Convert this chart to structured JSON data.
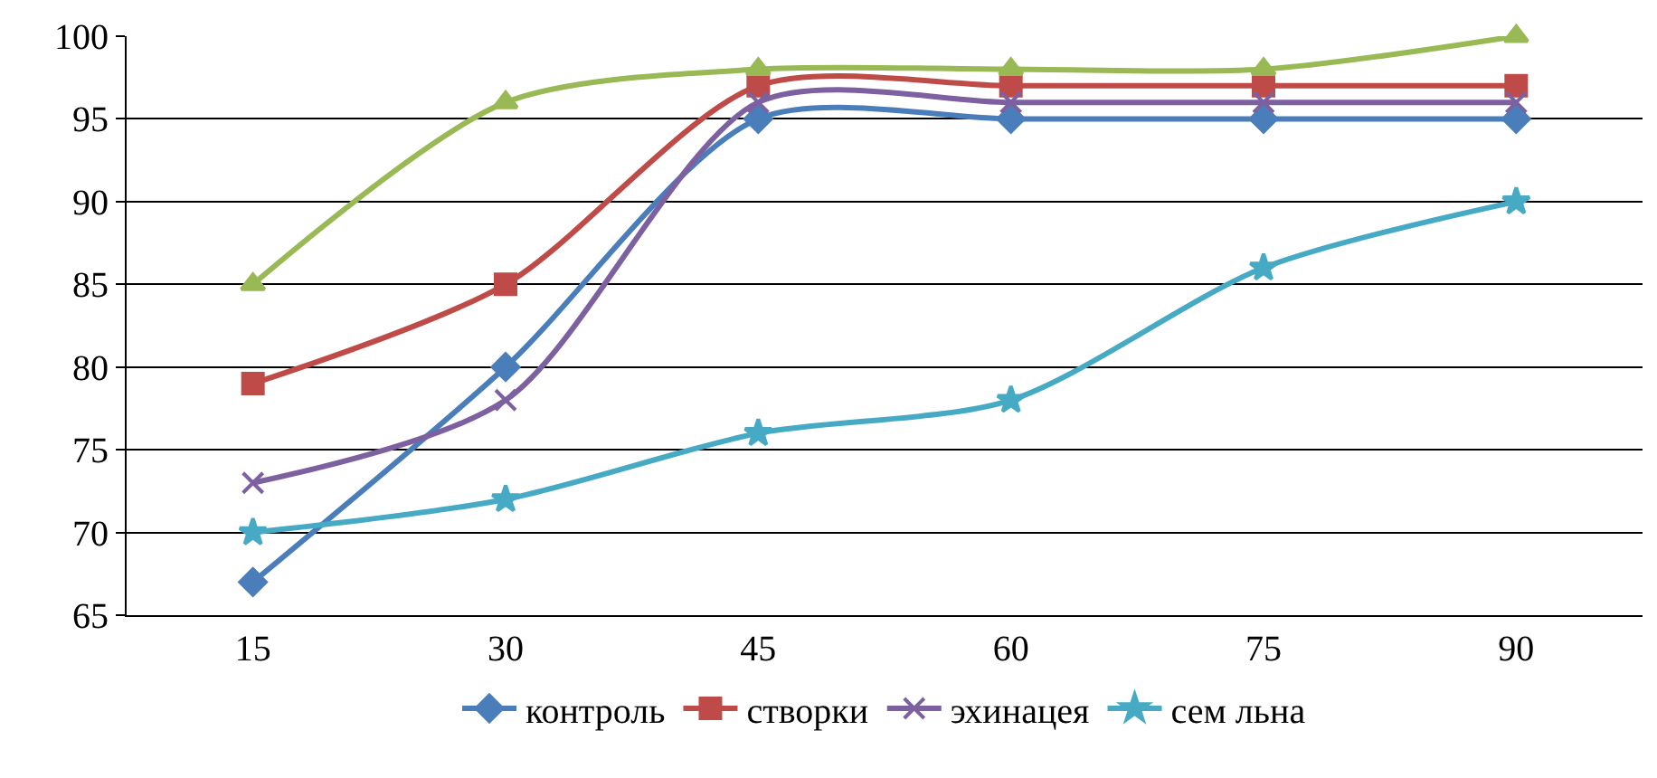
{
  "chart_data": {
    "type": "line",
    "categories": [
      "15",
      "30",
      "45",
      "60",
      "75",
      "90"
    ],
    "series": [
      {
        "name": "контроль",
        "color": "#4a7ebb",
        "marker": "diamond",
        "values": [
          67,
          80,
          95,
          95,
          95,
          95
        ]
      },
      {
        "name": "створки",
        "color": "#be4b48",
        "marker": "square",
        "values": [
          79,
          85,
          97,
          97,
          97,
          97
        ]
      },
      {
        "color": "#98b954",
        "marker": "triangle",
        "values": [
          85,
          96,
          98,
          98,
          98,
          100
        ]
      },
      {
        "name": "эхинацея",
        "color": "#7d60a0",
        "marker": "cross",
        "values": [
          73,
          78,
          96,
          96,
          96,
          96
        ]
      },
      {
        "name": "сем льна",
        "color": "#46aac5",
        "marker": "star",
        "values": [
          70,
          72,
          76,
          78,
          86,
          90
        ]
      }
    ],
    "ylim": [
      65,
      100
    ],
    "yticks": [
      65,
      70,
      75,
      80,
      85,
      90,
      95,
      100
    ],
    "grid": "y",
    "legend": "bottom",
    "line_style": "solid"
  }
}
